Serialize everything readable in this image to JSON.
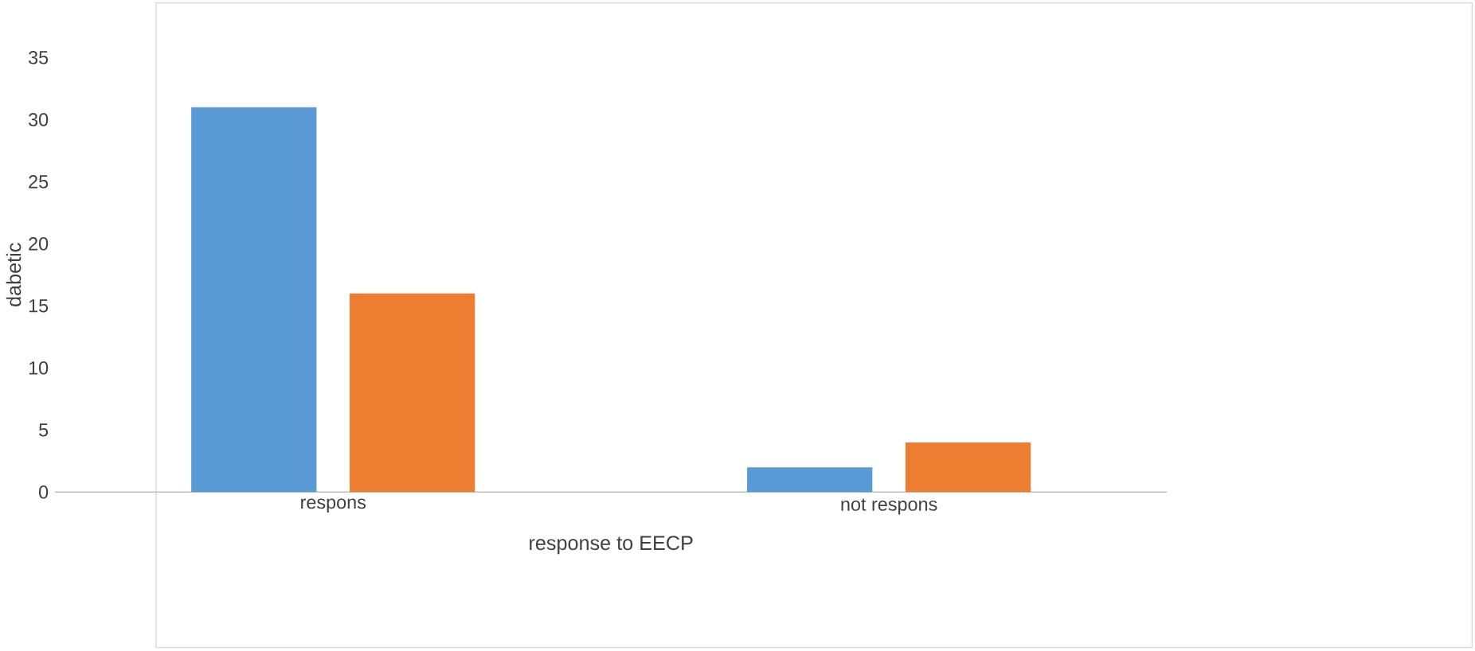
{
  "chart_data": {
    "type": "bar",
    "xlabel": "response to EECP",
    "ylabel": "dabetic",
    "categories": [
      "respons",
      "not respons"
    ],
    "series": [
      {
        "color": "#5b9bd5",
        "values": [
          31,
          2
        ]
      },
      {
        "color": "#ed7d31",
        "values": [
          16,
          4
        ]
      }
    ],
    "ylim": [
      0,
      35
    ],
    "yticks": [
      0,
      5,
      10,
      15,
      20,
      25,
      30,
      35
    ]
  }
}
